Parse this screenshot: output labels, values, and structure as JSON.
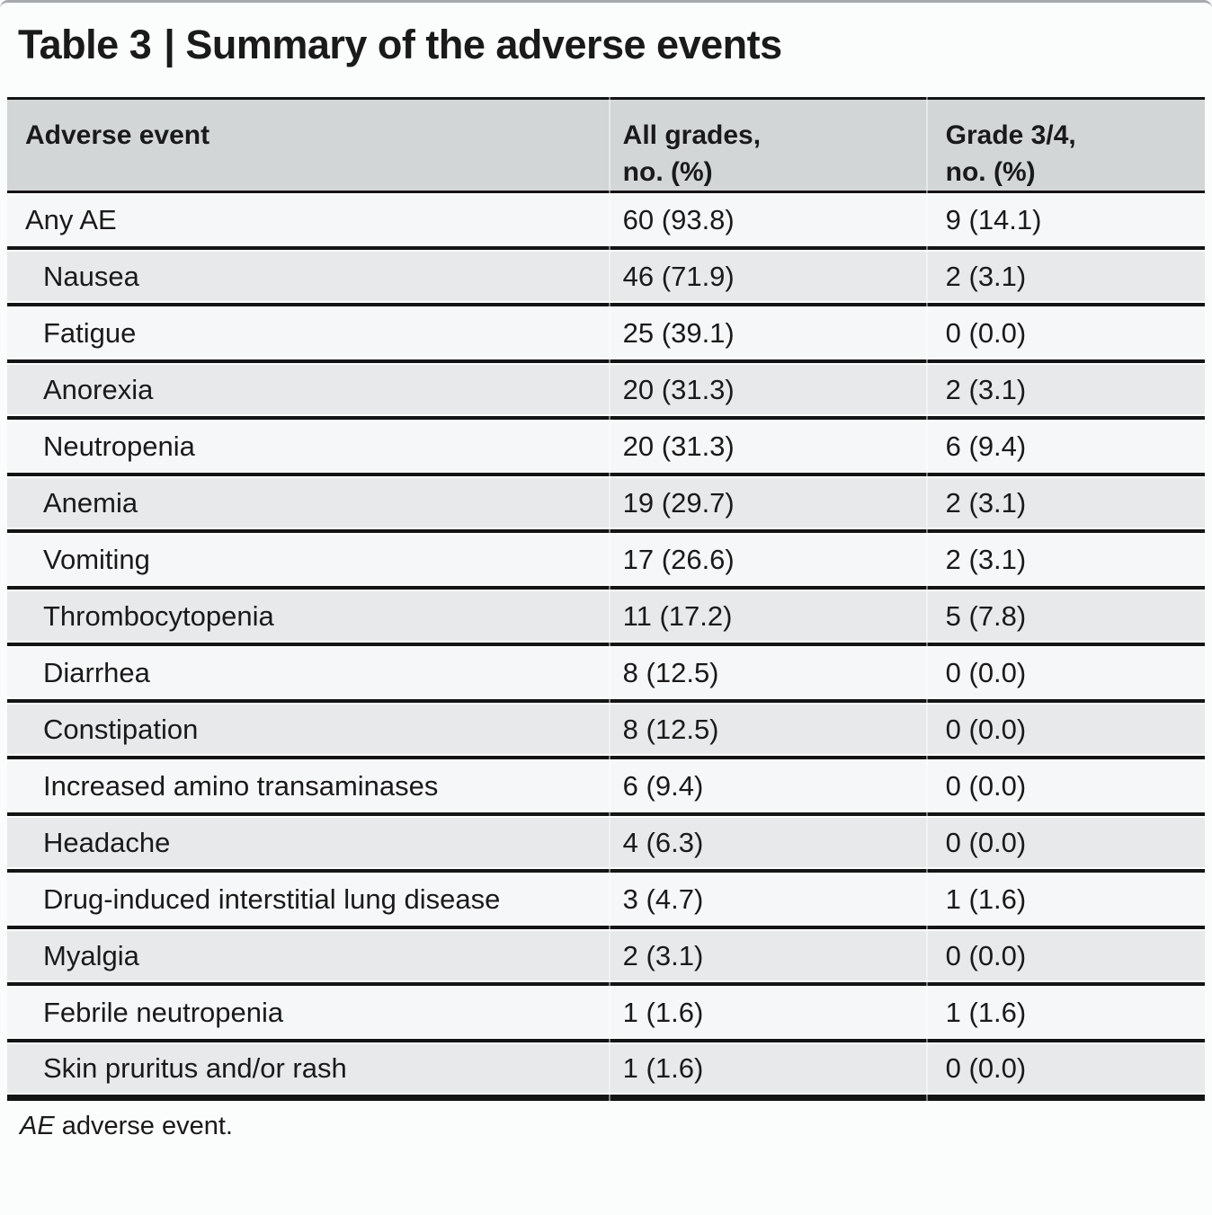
{
  "title": {
    "label": "Table 3",
    "separator": "|",
    "text": "Summary of the adverse events"
  },
  "table": {
    "header": {
      "event": "Adverse event",
      "all_grades_line1": "All grades,",
      "all_grades_line2": "no. (%)",
      "grade_3_4_line1": "Grade 3/4,",
      "grade_3_4_line2": "no. (%)"
    },
    "rows": [
      {
        "event": "Any AE",
        "all_grades": "60 (93.8)",
        "grade_3_4": "9 (14.1)",
        "subitem": false
      },
      {
        "event": "Nausea",
        "all_grades": "46 (71.9)",
        "grade_3_4": "2 (3.1)",
        "subitem": true
      },
      {
        "event": "Fatigue",
        "all_grades": "25 (39.1)",
        "grade_3_4": "0 (0.0)",
        "subitem": true
      },
      {
        "event": "Anorexia",
        "all_grades": "20 (31.3)",
        "grade_3_4": "2 (3.1)",
        "subitem": true
      },
      {
        "event": "Neutropenia",
        "all_grades": "20 (31.3)",
        "grade_3_4": "6 (9.4)",
        "subitem": true
      },
      {
        "event": "Anemia",
        "all_grades": "19 (29.7)",
        "grade_3_4": "2 (3.1)",
        "subitem": true
      },
      {
        "event": "Vomiting",
        "all_grades": "17 (26.6)",
        "grade_3_4": "2 (3.1)",
        "subitem": true
      },
      {
        "event": "Thrombocytopenia",
        "all_grades": "11 (17.2)",
        "grade_3_4": "5 (7.8)",
        "subitem": true
      },
      {
        "event": "Diarrhea",
        "all_grades": "8 (12.5)",
        "grade_3_4": "0 (0.0)",
        "subitem": true
      },
      {
        "event": "Constipation",
        "all_grades": "8 (12.5)",
        "grade_3_4": "0 (0.0)",
        "subitem": true
      },
      {
        "event": "Increased amino transaminases",
        "all_grades": "6 (9.4)",
        "grade_3_4": "0 (0.0)",
        "subitem": true
      },
      {
        "event": "Headache",
        "all_grades": "4 (6.3)",
        "grade_3_4": "0 (0.0)",
        "subitem": true
      },
      {
        "event": "Drug-induced interstitial lung disease",
        "all_grades": "3 (4.7)",
        "grade_3_4": "1 (1.6)",
        "subitem": true
      },
      {
        "event": "Myalgia",
        "all_grades": "2 (3.1)",
        "grade_3_4": "0 (0.0)",
        "subitem": true
      },
      {
        "event": "Febrile neutropenia",
        "all_grades": "1 (1.6)",
        "grade_3_4": "1 (1.6)",
        "subitem": true
      },
      {
        "event": "Skin pruritus and/or rash",
        "all_grades": "1 (1.6)",
        "grade_3_4": "0 (0.0)",
        "subitem": true
      }
    ]
  },
  "footnote": {
    "abbr": "AE",
    "text": " adverse event."
  },
  "colors": {
    "header_bg": "#d3d6d7",
    "row_light": "#f6f7f8",
    "row_gray": "#e7e9ea",
    "rule": "#141414",
    "page_bg": "#fbfcfc",
    "text": "#1a1a1a"
  }
}
